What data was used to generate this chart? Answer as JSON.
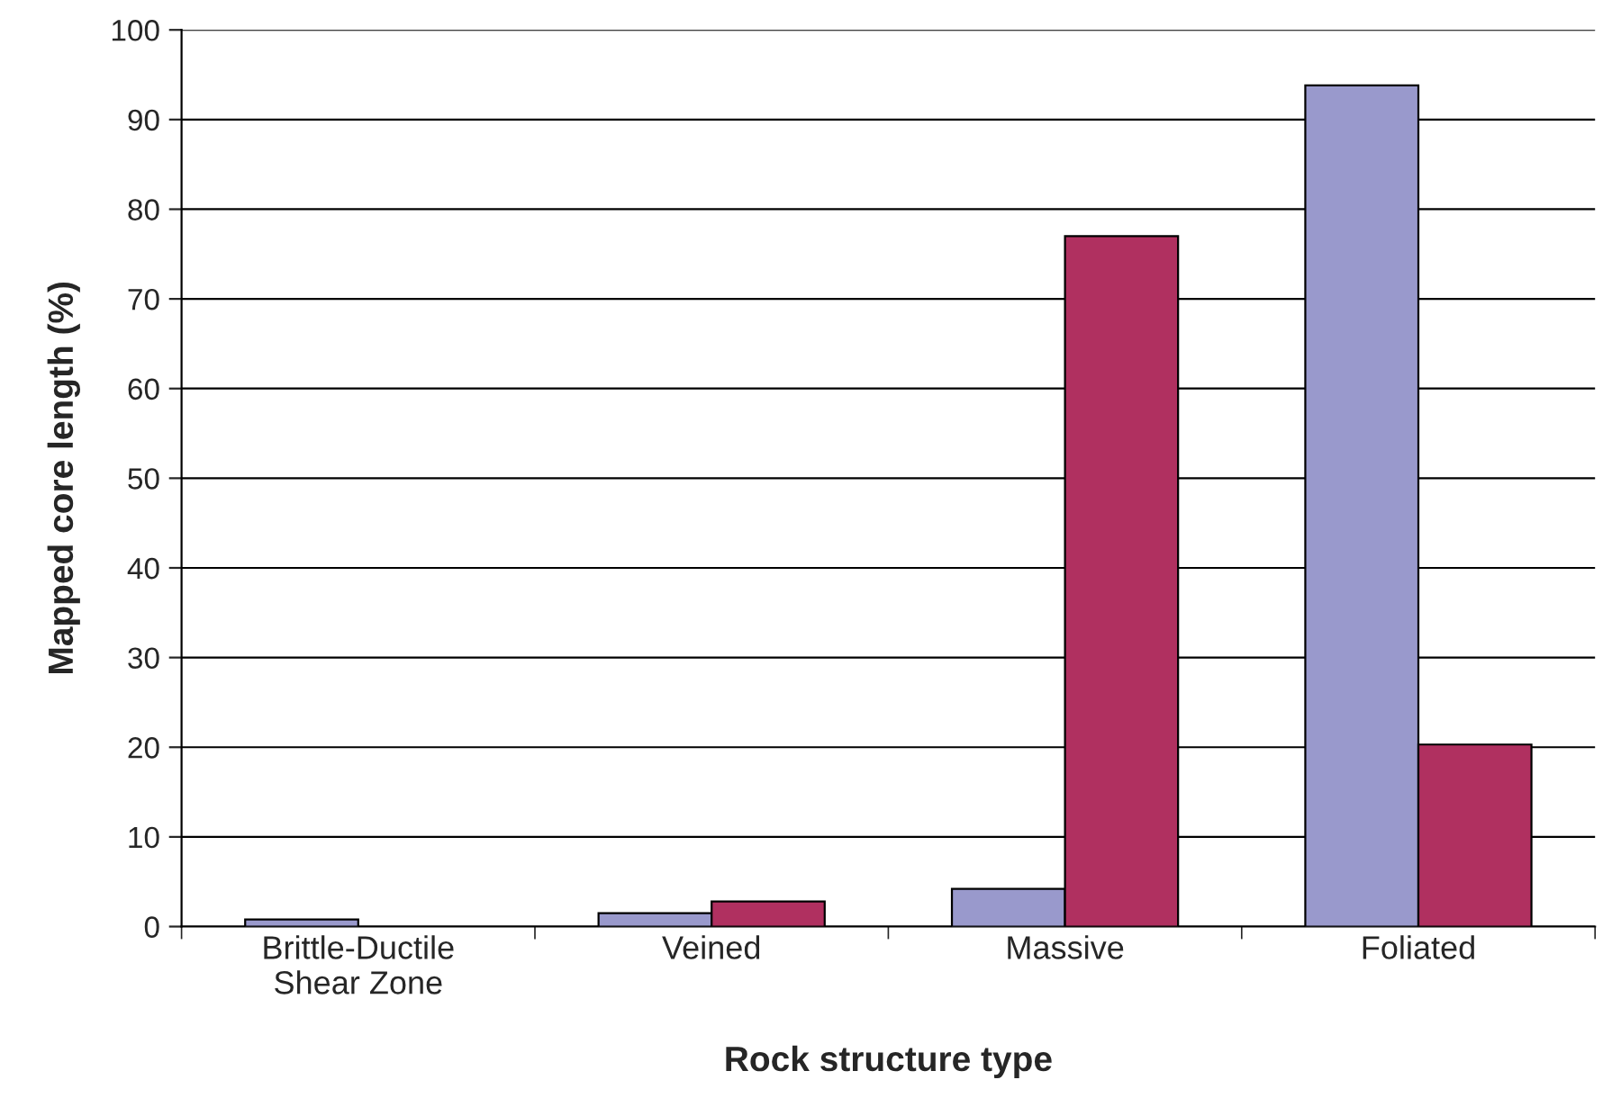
{
  "chart_data": {
    "type": "bar",
    "xlabel": "Rock structure type",
    "ylabel": "Mapped core length (%)",
    "categories": [
      "Brittle-Ductile\nShear Zone",
      "Veined",
      "Massive",
      "Foliated"
    ],
    "series": [
      {
        "color": "#9999cc",
        "values": [
          0.8,
          1.5,
          4.2,
          93.8
        ]
      },
      {
        "color": "#b03060",
        "values": [
          null,
          2.8,
          77,
          20.3
        ]
      }
    ],
    "ylim": [
      0,
      100
    ],
    "yticks": [
      0,
      10,
      20,
      30,
      40,
      50,
      60,
      70,
      80,
      90,
      100
    ],
    "grid": "y"
  }
}
